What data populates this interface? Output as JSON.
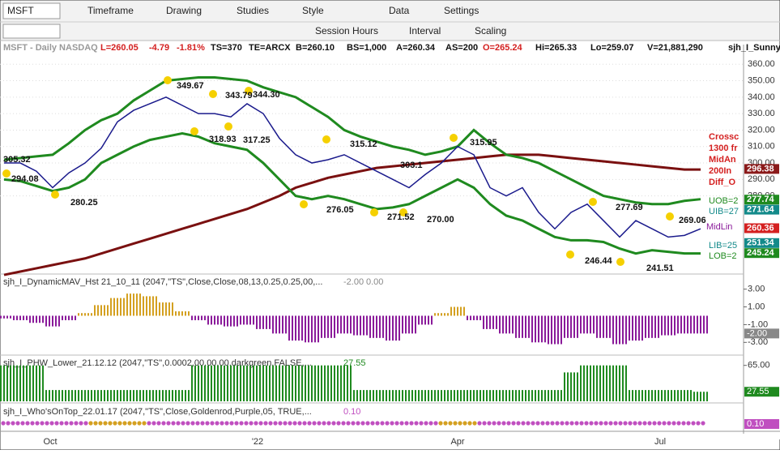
{
  "toolbar": {
    "symbol": "MSFT",
    "menus": [
      "Timeframe",
      "Drawing",
      "Studies",
      "Style",
      "Data",
      "Settings"
    ],
    "tools": [
      "Session Hours",
      "Interval",
      "Scaling"
    ]
  },
  "quote": {
    "name": "MSFT - Daily  NASDAQ",
    "last": "L=260.05",
    "change": "-4.79",
    "change_pct": "-1.81%",
    "fields": [
      "TS=370",
      "TE=ARCX",
      "B=260.10",
      "BS=1,000",
      "A=260.34",
      "AS=200"
    ],
    "open": "O=265.24",
    "fields2": [
      "Hi=265.33",
      "Lo=259.07",
      "V=21,881,290",
      "sjh_I_SunnyBands$$ ..."
    ]
  },
  "chart_data": {
    "type": "line",
    "ylim": [
      234,
      368.5
    ],
    "yticks": [
      {
        "value": 360,
        "label": "360.00"
      },
      {
        "value": 350,
        "label": "350.00"
      },
      {
        "value": 340,
        "label": "340.00"
      },
      {
        "value": 330,
        "label": "330.00"
      },
      {
        "value": 320,
        "label": "320.00"
      },
      {
        "value": 310,
        "label": "310.00"
      },
      {
        "value": 300,
        "label": "300.00"
      },
      {
        "value": 290,
        "label": "290.00"
      },
      {
        "value": 280,
        "label": "280.00"
      }
    ],
    "series": [
      {
        "name": "Close",
        "color": "#1a1a8c",
        "values": [
          300,
          300,
          295,
          285,
          294,
          300,
          309,
          325,
          332,
          336,
          340,
          335,
          330,
          330,
          328,
          336,
          330,
          315,
          305,
          300,
          302,
          305,
          300,
          295,
          290,
          285,
          293,
          300,
          310,
          305,
          285,
          280,
          285,
          270,
          260,
          270,
          275,
          265,
          255,
          265,
          260,
          255,
          256,
          260
        ]
      },
      {
        "name": "UOB",
        "color": "#1f8a1f",
        "values": [
          302,
          303,
          304,
          305,
          312,
          320,
          326,
          330,
          338,
          344,
          350,
          351,
          352,
          352,
          351,
          350,
          346,
          343,
          340,
          334,
          328,
          320,
          316,
          313,
          310,
          308,
          305,
          307,
          310,
          320,
          312,
          305,
          303,
          300,
          295,
          290,
          285,
          280,
          278,
          276,
          275,
          275,
          277,
          278
        ]
      },
      {
        "name": "LOB",
        "color": "#1f8a1f",
        "values": [
          290,
          289,
          286,
          283,
          285,
          290,
          300,
          305,
          310,
          314,
          316,
          318,
          316,
          312,
          310,
          308,
          300,
          290,
          280,
          278,
          280,
          278,
          275,
          272,
          273,
          275,
          280,
          285,
          290,
          285,
          275,
          268,
          265,
          260,
          255,
          253,
          253,
          252,
          248,
          245,
          247,
          246,
          245,
          245
        ]
      },
      {
        "name": "200 MA",
        "color": "#7a1010",
        "values": [
          232,
          234,
          236,
          238,
          240,
          242,
          245,
          248,
          251,
          254,
          257,
          260,
          263,
          266,
          269,
          272,
          276,
          280,
          285,
          288,
          291,
          293,
          295,
          297,
          298,
          299,
          300,
          301,
          302,
          303,
          304,
          305,
          305,
          305,
          304,
          303,
          302,
          301,
          300,
          299,
          298,
          297,
          296,
          296
        ]
      }
    ],
    "price_labels": [
      {
        "value": 296.38,
        "label": "296.38",
        "color": "#8b1a1a"
      },
      {
        "value": 277.74,
        "label": "277.74",
        "color": "#1f8a1f"
      },
      {
        "value": 271.64,
        "label": "271.64",
        "color": "#138a8a"
      },
      {
        "value": 260.36,
        "label": "260.36",
        "color": "#d42020"
      },
      {
        "value": 251.34,
        "label": "251.34",
        "color": "#138a8a"
      },
      {
        "value": 245.24,
        "label": "245.24",
        "color": "#1f8a1f"
      }
    ],
    "annotations": [
      "349.67",
      "343.79",
      "344.30",
      "318.93",
      "317.25",
      "305.32",
      "294.08",
      "280.25",
      "276.05",
      "271.52",
      "270.00",
      "315.12",
      "303.1",
      "315.95",
      "277.69",
      "269.06",
      "246.44",
      "241.51"
    ],
    "band_labels": [
      "UOB=2",
      "UIB=27",
      "LIB=25",
      "LOB=2",
      "MidLin"
    ],
    "signal_labels": [
      "Crossc",
      "1300 fr",
      "MidAn",
      "200In",
      "Diff_O"
    ],
    "x_labels": [
      "Oct",
      "'22",
      "Apr",
      "Jul"
    ]
  },
  "indicators": [
    {
      "title": "sjh_I_DynamicMAV_Hst 21_10_11 (2047,\"TS\",Close,Close,08,13,0.25,0.25,00,...",
      "readings": [
        "-2.00",
        "0.00"
      ],
      "ylim": [
        -4.16,
        4.34
      ],
      "yticks": [
        {
          "value": 3,
          "label": "3.00"
        },
        {
          "value": 1,
          "label": "1.00"
        },
        {
          "value": -1,
          "label": "-1.00"
        },
        {
          "value": -3,
          "label": "-3.00"
        }
      ],
      "last": {
        "value": -2,
        "label": "-2.00"
      },
      "positive_color": "#d4a020",
      "negative_color": "#8a1a9a",
      "values": [
        -0.3,
        -0.5,
        -0.8,
        -1.2,
        -0.5,
        0.3,
        1.2,
        2.0,
        2.5,
        2.2,
        1.5,
        0.5,
        -0.5,
        -1.0,
        -1.2,
        -1.0,
        -1.5,
        -2.0,
        -2.8,
        -3.0,
        -2.5,
        -2.0,
        -2.2,
        -2.5,
        -2.8,
        -2.0,
        -1.0,
        0.3,
        1.0,
        -0.5,
        -1.5,
        -2.0,
        -2.5,
        -3.0,
        -3.2,
        -2.5,
        -2.0,
        -2.5,
        -3.2,
        -2.8,
        -2.5,
        -2.2,
        -2.0,
        -2.0
      ]
    },
    {
      "title": "sjh_I_PHW_Lower_21.12.12 (2047,\"TS\",0.0002,00,00,00,darkgreen,FALSE,...",
      "readings": [
        "27.55"
      ],
      "ylim": [
        14,
        75
      ],
      "yticks": [
        {
          "value": 65,
          "label": "65.00"
        }
      ],
      "last": {
        "value": 27.55,
        "label": "27.55"
      },
      "color": "#1f8a1f",
      "values": [
        65,
        65,
        65,
        30,
        30,
        30,
        30,
        30,
        30,
        30,
        30,
        30,
        65,
        65,
        65,
        65,
        65,
        65,
        65,
        65,
        65,
        65,
        30,
        30,
        30,
        30,
        30,
        30,
        30,
        30,
        30,
        30,
        30,
        30,
        30,
        55,
        65,
        65,
        65,
        30,
        30,
        30,
        30,
        27.55
      ]
    },
    {
      "title": "sjh_I_Who'sOnTop_22.01.17 (2047,\"TS\",Close,Goldenrod,Purple,05, TRUE,...",
      "readings": [
        "0.10"
      ],
      "last": {
        "value": 0.1,
        "label": "0.10"
      }
    }
  ]
}
